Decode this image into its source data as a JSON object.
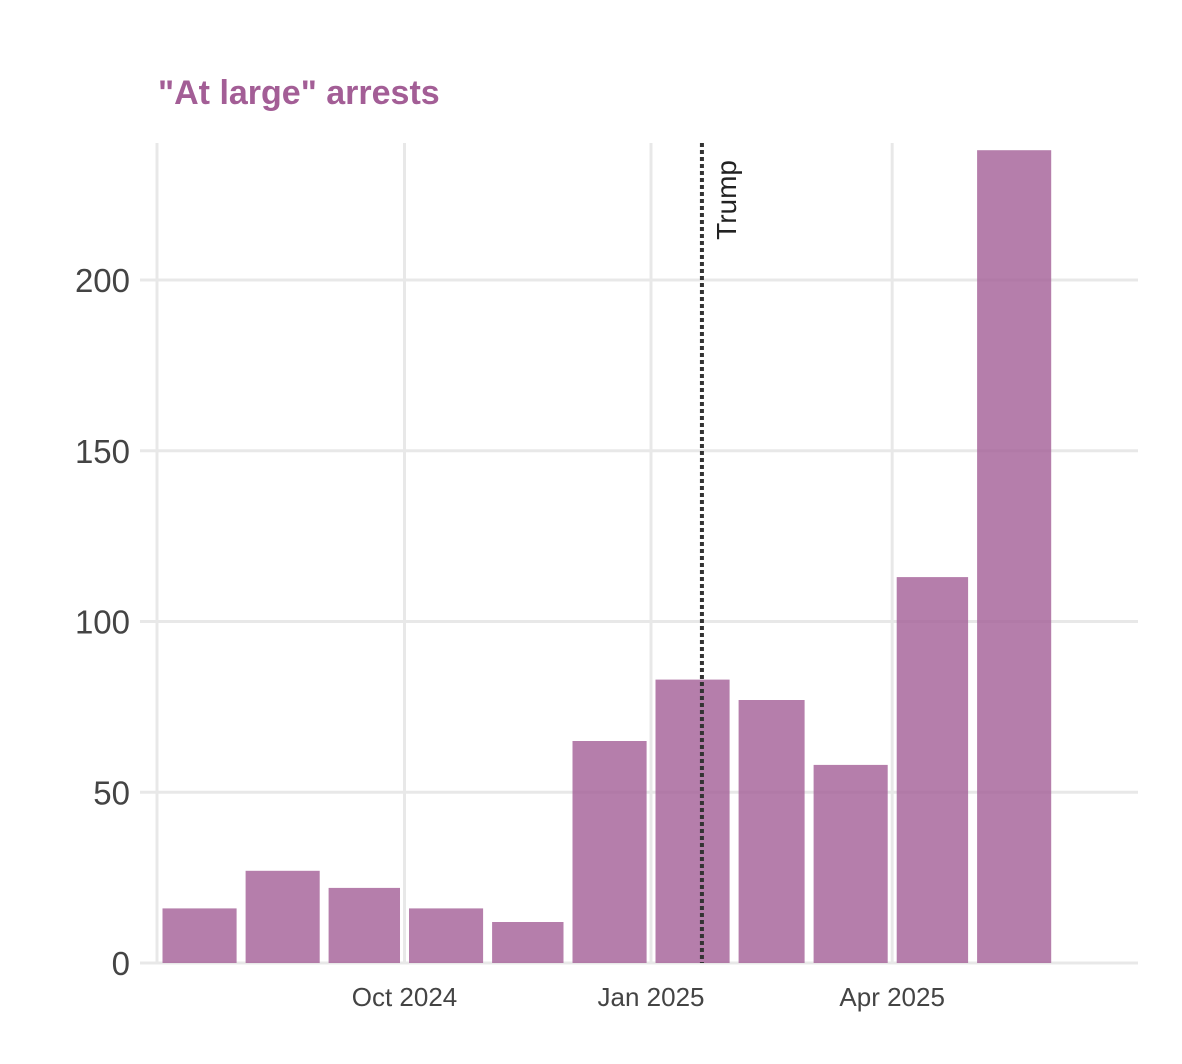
{
  "colors": {
    "bar": "#a35e96",
    "title": "#a35e96",
    "grid": "#e8e8e8",
    "axis_text": "#444444",
    "annotation_line": "#333333"
  },
  "chart_data": {
    "type": "bar",
    "title": "\"At large\" arrests",
    "xlabel": "",
    "ylabel": "",
    "categories": [
      "Jul 2024",
      "Aug 2024",
      "Sep 2024",
      "Oct 2024",
      "Nov 2024",
      "Dec 2024",
      "Jan 2025",
      "Feb 2025",
      "Mar 2025",
      "Apr 2025",
      "May 2025"
    ],
    "values": [
      16,
      27,
      22,
      16,
      12,
      65,
      83,
      77,
      58,
      113,
      238
    ],
    "ylim": [
      0,
      238
    ],
    "y_ticks": [
      0,
      50,
      100,
      150,
      200
    ],
    "x_ticks": [
      {
        "date": "2024-10-01",
        "label": "Oct 2024"
      },
      {
        "date": "2025-01-01",
        "label": "Jan 2025"
      },
      {
        "date": "2025-04-01",
        "label": "Apr 2025"
      }
    ],
    "grid": true,
    "legend": "none",
    "annotations": [
      {
        "type": "vline",
        "date": "2025-01-20",
        "label": "Trump",
        "style": "dotted"
      }
    ]
  }
}
